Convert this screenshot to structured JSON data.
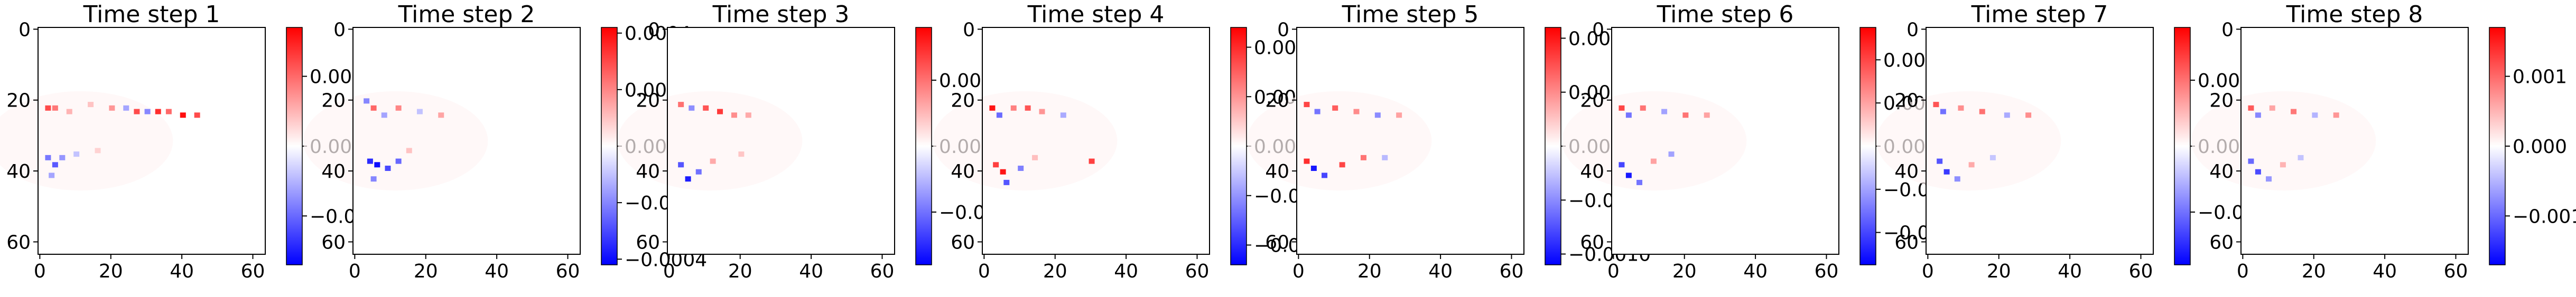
{
  "figure": {
    "layout": "1x8 panels, each an image with a vertical colorbar (bwr colormap)"
  },
  "chart_data": [
    {
      "type": "heatmap",
      "title": "Time step 1",
      "x_ticks": [
        "0",
        "20",
        "40",
        "60"
      ],
      "y_ticks": [
        "0",
        "20",
        "40",
        "60"
      ],
      "xlim": [
        0,
        63
      ],
      "ylim": [
        0,
        63
      ],
      "colorbar": {
        "min": -0.0017,
        "max": 0.0017,
        "ticks": [
          -0.001,
          0.0,
          0.001
        ],
        "labels": [
          "−0.001",
          "0.000",
          "0.001"
        ]
      },
      "colormap": [
        "#0000ff",
        "#ffffff",
        "#ff0000"
      ],
      "blobs": [
        {
          "x": 2,
          "y": 22,
          "v": 0.0012
        },
        {
          "x": 4,
          "y": 22,
          "v": 0.0009
        },
        {
          "x": 8,
          "y": 23,
          "v": 0.0005
        },
        {
          "x": 14,
          "y": 21,
          "v": 0.0004
        },
        {
          "x": 20,
          "y": 22,
          "v": 0.0007
        },
        {
          "x": 24,
          "y": 22,
          "v": -0.0006
        },
        {
          "x": 27,
          "y": 23,
          "v": 0.0012
        },
        {
          "x": 30,
          "y": 23,
          "v": -0.0008
        },
        {
          "x": 33,
          "y": 23,
          "v": 0.0014
        },
        {
          "x": 36,
          "y": 23,
          "v": 0.001
        },
        {
          "x": 40,
          "y": 24,
          "v": 0.0016
        },
        {
          "x": 44,
          "y": 24,
          "v": 0.0012
        },
        {
          "x": 2,
          "y": 36,
          "v": -0.0009
        },
        {
          "x": 4,
          "y": 38,
          "v": -0.0011
        },
        {
          "x": 6,
          "y": 36,
          "v": -0.0007
        },
        {
          "x": 3,
          "y": 41,
          "v": -0.0006
        },
        {
          "x": 10,
          "y": 35,
          "v": -0.0004
        },
        {
          "x": 16,
          "y": 34,
          "v": 0.0003
        }
      ]
    },
    {
      "type": "heatmap",
      "title": "Time step 2",
      "x_ticks": [
        "0",
        "20",
        "40",
        "60"
      ],
      "y_ticks": [
        "0",
        "20",
        "40",
        "60"
      ],
      "xlim": [
        0,
        63
      ],
      "ylim": [
        0,
        63
      ],
      "colorbar": {
        "min": -0.00042,
        "max": 0.00042,
        "ticks": [
          -0.0004,
          -0.0002,
          0.0,
          0.0002,
          0.0004
        ],
        "labels": [
          "−0.0004",
          "−0.0002",
          "0.0000",
          "0.0002",
          "0.0004"
        ]
      },
      "colormap": [
        "#0000ff",
        "#ffffff",
        "#ff0000"
      ],
      "blobs": [
        {
          "x": 3,
          "y": 20,
          "v": -0.0002
        },
        {
          "x": 5,
          "y": 22,
          "v": 0.00025
        },
        {
          "x": 8,
          "y": 24,
          "v": -0.00015
        },
        {
          "x": 12,
          "y": 22,
          "v": 0.0002
        },
        {
          "x": 18,
          "y": 23,
          "v": -0.0001
        },
        {
          "x": 24,
          "y": 24,
          "v": 0.00015
        },
        {
          "x": 4,
          "y": 37,
          "v": -0.00035
        },
        {
          "x": 6,
          "y": 38,
          "v": -0.0004
        },
        {
          "x": 9,
          "y": 39,
          "v": -0.0003
        },
        {
          "x": 12,
          "y": 37,
          "v": -0.00025
        },
        {
          "x": 5,
          "y": 42,
          "v": -0.0002
        },
        {
          "x": 15,
          "y": 34,
          "v": 0.0001
        }
      ]
    },
    {
      "type": "heatmap",
      "title": "Time step 3",
      "x_ticks": [
        "0",
        "20",
        "40",
        "60"
      ],
      "y_ticks": [
        "0",
        "20",
        "40",
        "60"
      ],
      "xlim": [
        0,
        63
      ],
      "ylim": [
        0,
        63
      ],
      "colorbar": {
        "min": -0.0009,
        "max": 0.0009,
        "ticks": [
          -0.0005,
          0.0,
          0.0005
        ],
        "labels": [
          "−0.0005",
          "0.0000",
          "0.0005"
        ]
      },
      "colormap": [
        "#0000ff",
        "#ffffff",
        "#ff0000"
      ],
      "blobs": [
        {
          "x": 3,
          "y": 21,
          "v": 0.0005
        },
        {
          "x": 6,
          "y": 22,
          "v": -0.0004
        },
        {
          "x": 10,
          "y": 22,
          "v": 0.0006
        },
        {
          "x": 14,
          "y": 23,
          "v": 0.0007
        },
        {
          "x": 18,
          "y": 24,
          "v": 0.0004
        },
        {
          "x": 22,
          "y": 24,
          "v": 0.0003
        },
        {
          "x": 3,
          "y": 38,
          "v": -0.0006
        },
        {
          "x": 5,
          "y": 42,
          "v": -0.0008
        },
        {
          "x": 8,
          "y": 40,
          "v": -0.0005
        },
        {
          "x": 12,
          "y": 37,
          "v": 0.0003
        },
        {
          "x": 20,
          "y": 35,
          "v": 0.0002
        }
      ]
    },
    {
      "type": "heatmap",
      "title": "Time step 4",
      "x_ticks": [
        "0",
        "20",
        "40",
        "60"
      ],
      "y_ticks": [
        "0",
        "20",
        "40",
        "60"
      ],
      "xlim": [
        0,
        63
      ],
      "ylim": [
        0,
        63
      ],
      "colorbar": {
        "min": -0.0012,
        "max": 0.0012,
        "ticks": [
          -0.001,
          -0.0005,
          0.0,
          0.0005,
          0.001
        ],
        "labels": [
          "−0.0010",
          "−0.0005",
          "0.0000",
          "0.0005",
          "0.0010"
        ]
      },
      "colormap": [
        "#0000ff",
        "#ffffff",
        "#ff0000"
      ],
      "blobs": [
        {
          "x": 2,
          "y": 22,
          "v": 0.0011
        },
        {
          "x": 4,
          "y": 24,
          "v": -0.0007
        },
        {
          "x": 8,
          "y": 22,
          "v": 0.0006
        },
        {
          "x": 12,
          "y": 22,
          "v": 0.0008
        },
        {
          "x": 16,
          "y": 23,
          "v": 0.0005
        },
        {
          "x": 22,
          "y": 24,
          "v": -0.0004
        },
        {
          "x": 3,
          "y": 38,
          "v": 0.0009
        },
        {
          "x": 5,
          "y": 40,
          "v": 0.0011
        },
        {
          "x": 6,
          "y": 43,
          "v": -0.0008
        },
        {
          "x": 10,
          "y": 39,
          "v": -0.0006
        },
        {
          "x": 14,
          "y": 36,
          "v": 0.0003
        },
        {
          "x": 30,
          "y": 37,
          "v": 0.0009
        }
      ]
    },
    {
      "type": "heatmap",
      "title": "Time step 5",
      "x_ticks": [
        "0",
        "20",
        "40",
        "60"
      ],
      "y_ticks": [
        "0",
        "20",
        "40",
        "60"
      ],
      "xlim": [
        0,
        63
      ],
      "ylim": [
        0,
        63
      ],
      "colorbar": {
        "min": -0.0011,
        "max": 0.0011,
        "ticks": [
          -0.001,
          -0.0005,
          0.0,
          0.0005,
          0.001
        ],
        "labels": [
          "−0.0010",
          "−0.0005",
          "0.0000",
          "0.0005",
          "0.0010"
        ]
      },
      "colormap": [
        "#0000ff",
        "#ffffff",
        "#ff0000"
      ],
      "blobs": [
        {
          "x": 2,
          "y": 21,
          "v": 0.0008
        },
        {
          "x": 5,
          "y": 23,
          "v": -0.0006
        },
        {
          "x": 10,
          "y": 22,
          "v": 0.0007
        },
        {
          "x": 16,
          "y": 23,
          "v": 0.0005
        },
        {
          "x": 22,
          "y": 24,
          "v": -0.0005
        },
        {
          "x": 28,
          "y": 24,
          "v": 0.0004
        },
        {
          "x": 2,
          "y": 37,
          "v": 0.0009
        },
        {
          "x": 4,
          "y": 39,
          "v": -0.001
        },
        {
          "x": 7,
          "y": 41,
          "v": -0.0008
        },
        {
          "x": 12,
          "y": 38,
          "v": 0.0008
        },
        {
          "x": 18,
          "y": 36,
          "v": 0.0006
        },
        {
          "x": 24,
          "y": 36,
          "v": -0.0003
        }
      ]
    },
    {
      "type": "heatmap",
      "title": "Time step 6",
      "x_ticks": [
        "0",
        "20",
        "40",
        "60"
      ],
      "y_ticks": [
        "0",
        "20",
        "40",
        "60"
      ],
      "xlim": [
        0,
        63
      ],
      "ylim": [
        0,
        63
      ],
      "colorbar": {
        "min": -0.00055,
        "max": 0.00055,
        "ticks": [
          -0.0004,
          -0.0002,
          0.0,
          0.0002,
          0.0004
        ],
        "labels": [
          "−0.0004",
          "−0.0002",
          "0.0000",
          "0.0002",
          "0.0004"
        ]
      },
      "colormap": [
        "#0000ff",
        "#ffffff",
        "#ff0000"
      ],
      "blobs": [
        {
          "x": 2,
          "y": 22,
          "v": 0.0004
        },
        {
          "x": 4,
          "y": 24,
          "v": -0.0003
        },
        {
          "x": 8,
          "y": 22,
          "v": 0.0003
        },
        {
          "x": 14,
          "y": 23,
          "v": -0.0002
        },
        {
          "x": 20,
          "y": 24,
          "v": 0.0003
        },
        {
          "x": 26,
          "y": 24,
          "v": 0.0002
        },
        {
          "x": 2,
          "y": 38,
          "v": -0.0004
        },
        {
          "x": 4,
          "y": 41,
          "v": -0.0005
        },
        {
          "x": 7,
          "y": 43,
          "v": -0.0003
        },
        {
          "x": 11,
          "y": 37,
          "v": 0.0002
        },
        {
          "x": 16,
          "y": 35,
          "v": -0.0002
        }
      ]
    },
    {
      "type": "heatmap",
      "title": "Time step 7",
      "x_ticks": [
        "0",
        "20",
        "40",
        "60"
      ],
      "y_ticks": [
        "0",
        "20",
        "40",
        "60"
      ],
      "xlim": [
        0,
        63
      ],
      "ylim": [
        0,
        63
      ],
      "colorbar": {
        "min": -0.0009,
        "max": 0.0009,
        "ticks": [
          -0.0005,
          0.0,
          0.0005
        ],
        "labels": [
          "−0.0005",
          "0.0000",
          "0.0005"
        ]
      },
      "colormap": [
        "#0000ff",
        "#ffffff",
        "#ff0000"
      ],
      "blobs": [
        {
          "x": 2,
          "y": 21,
          "v": 0.0006
        },
        {
          "x": 4,
          "y": 23,
          "v": -0.0005
        },
        {
          "x": 9,
          "y": 22,
          "v": 0.0004
        },
        {
          "x": 15,
          "y": 23,
          "v": 0.0005
        },
        {
          "x": 22,
          "y": 24,
          "v": -0.0003
        },
        {
          "x": 28,
          "y": 24,
          "v": 0.0004
        },
        {
          "x": 3,
          "y": 37,
          "v": -0.0006
        },
        {
          "x": 5,
          "y": 40,
          "v": -0.0007
        },
        {
          "x": 8,
          "y": 42,
          "v": -0.0004
        },
        {
          "x": 12,
          "y": 38,
          "v": 0.0003
        },
        {
          "x": 18,
          "y": 36,
          "v": -0.0002
        }
      ]
    },
    {
      "type": "heatmap",
      "title": "Time step 8",
      "x_ticks": [
        "0",
        "20",
        "40",
        "60"
      ],
      "y_ticks": [
        "0",
        "20",
        "40",
        "60"
      ],
      "xlim": [
        0,
        63
      ],
      "ylim": [
        0,
        63
      ],
      "colorbar": {
        "min": -0.0017,
        "max": 0.0017,
        "ticks": [
          -0.001,
          0.0,
          0.001
        ],
        "labels": [
          "−0.001",
          "0.000",
          "0.001"
        ]
      },
      "colormap": [
        "#0000ff",
        "#ffffff",
        "#ff0000"
      ],
      "blobs": [
        {
          "x": 2,
          "y": 22,
          "v": 0.0011
        },
        {
          "x": 4,
          "y": 24,
          "v": -0.0008
        },
        {
          "x": 8,
          "y": 22,
          "v": 0.0006
        },
        {
          "x": 14,
          "y": 23,
          "v": 0.0009
        },
        {
          "x": 20,
          "y": 24,
          "v": -0.0005
        },
        {
          "x": 26,
          "y": 24,
          "v": 0.0007
        },
        {
          "x": 2,
          "y": 37,
          "v": -0.001
        },
        {
          "x": 4,
          "y": 40,
          "v": -0.0012
        },
        {
          "x": 7,
          "y": 42,
          "v": -0.0007
        },
        {
          "x": 11,
          "y": 38,
          "v": 0.0005
        },
        {
          "x": 16,
          "y": 36,
          "v": -0.0004
        }
      ]
    }
  ]
}
